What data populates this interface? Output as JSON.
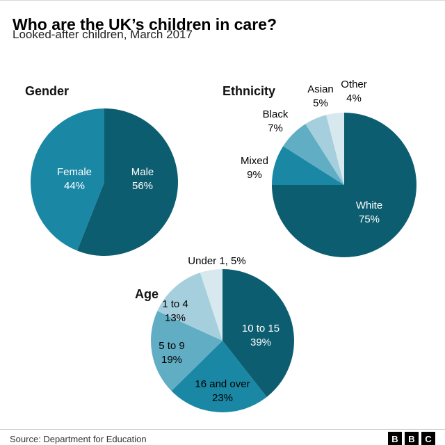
{
  "header": {
    "title": "Who are the UK’s children in care?",
    "subtitle": "Looked-after children, March 2017"
  },
  "footer": {
    "source": "Source: Department for Education",
    "logo_letters": [
      "B",
      "B",
      "C"
    ]
  },
  "palette": {
    "teal_dark": "#0d5d70",
    "teal_mid": "#1a87a5",
    "teal_light": "#61adc4",
    "blue_pale": "#a6cfdd",
    "blue_faint": "#d7e9ef"
  },
  "chart_data": [
    {
      "type": "pie",
      "title": "Gender",
      "legend_position": "inside",
      "slices": [
        {
          "name": "Male",
          "value": 56,
          "pct": "56%",
          "color": "#0d5d70"
        },
        {
          "name": "Female",
          "value": 44,
          "pct": "44%",
          "color": "#1a87a5"
        }
      ]
    },
    {
      "type": "pie",
      "title": "Ethnicity",
      "legend_position": "outside",
      "slices": [
        {
          "name": "White",
          "value": 75,
          "pct": "75%",
          "color": "#0d5d70"
        },
        {
          "name": "Mixed",
          "value": 9,
          "pct": "9%",
          "color": "#1a87a5"
        },
        {
          "name": "Black",
          "value": 7,
          "pct": "7%",
          "color": "#61adc4"
        },
        {
          "name": "Asian",
          "value": 5,
          "pct": "5%",
          "color": "#a6cfdd"
        },
        {
          "name": "Other",
          "value": 4,
          "pct": "4%",
          "color": "#d7e9ef"
        }
      ]
    },
    {
      "type": "pie",
      "title": "Age",
      "legend_position": "mixed",
      "slices": [
        {
          "name": "10 to 15",
          "value": 39,
          "pct": "39%",
          "color": "#0d5d70"
        },
        {
          "name": "16 and over",
          "value": 23,
          "pct": "23%",
          "color": "#1a87a5"
        },
        {
          "name": "5 to 9",
          "value": 19,
          "pct": "19%",
          "color": "#61adc4"
        },
        {
          "name": "1 to 4",
          "value": 13,
          "pct": "13%",
          "color": "#a6cfdd"
        },
        {
          "name": "Under 1",
          "value": 5,
          "pct": "5%",
          "color": "#d7e9ef",
          "inline_label": "Under 1, 5%"
        }
      ]
    }
  ]
}
